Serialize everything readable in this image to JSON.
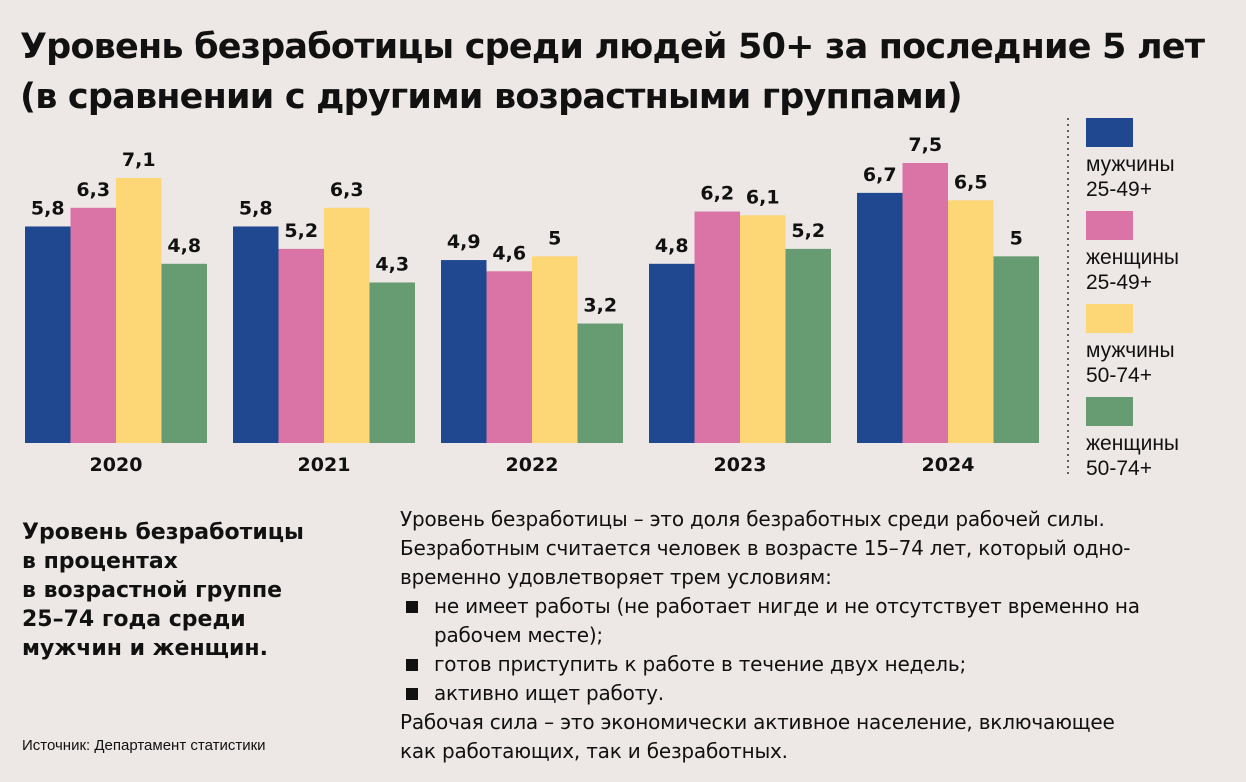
{
  "title_lines": [
    "Уровень безработицы среди людей 50+ за последние 5 лет",
    "(в сравнении с другими возрастными группами)"
  ],
  "chart_data": {
    "type": "bar",
    "title": "Уровень безработицы среди людей 50+ за последние 5 лет (в сравнении с другими возрастными группами)",
    "categories": [
      "2020",
      "2021",
      "2022",
      "2023",
      "2024"
    ],
    "series": [
      {
        "name": "мужчины 25-49+",
        "legend_lines": [
          "мужчины",
          "25-49+"
        ],
        "color": "#1f4891",
        "values": [
          5.8,
          5.8,
          4.9,
          4.8,
          6.7
        ],
        "labels": [
          "5,8",
          "5,8",
          "4,9",
          "4,8",
          "6,7"
        ]
      },
      {
        "name": "женщины 25-49+",
        "legend_lines": [
          "женщины",
          "25-49+"
        ],
        "color": "#db74a6",
        "values": [
          6.3,
          5.2,
          4.6,
          6.2,
          7.5
        ],
        "labels": [
          "6,3",
          "5,2",
          "4,6",
          "6,2",
          "7,5"
        ]
      },
      {
        "name": "мужчины 50-74+",
        "legend_lines": [
          "мужчины",
          "50-74+"
        ],
        "color": "#fdd776",
        "values": [
          7.1,
          6.3,
          5.0,
          6.1,
          6.5
        ],
        "labels": [
          "7,1",
          "6,3",
          "5",
          "6,1",
          "6,5"
        ]
      },
      {
        "name": "женщины 50-74+",
        "legend_lines": [
          "женщины",
          "50-74+"
        ],
        "color": "#679c73",
        "values": [
          4.8,
          4.3,
          3.2,
          5.2,
          5.0
        ],
        "labels": [
          "4,8",
          "4,3",
          "3,2",
          "5,2",
          "5"
        ]
      }
    ],
    "ylim": [
      0,
      7.5
    ],
    "grid": false,
    "legend_position": "right"
  },
  "note_left": "Уровень безработицы\nв процентах\nв возрастной группе\n25–74 года среди\nмужчин и женщин.",
  "source": "Источник: Департамент статистики",
  "description": {
    "para1": [
      "Уровень безработицы – это доля безработных среди рабочей силы.",
      "Безработным считается человек в возрасте 15–74 лет, который одно-",
      "временно удовлетворяет трем условиям:"
    ],
    "conditions": [
      "не имеет работы (не работает нигде и не отсутствует временно на\nрабочем месте);",
      "готов приступить к работе в течение двух недель;",
      "активно ищет работу."
    ],
    "para2": [
      "Рабочая сила – это экономически активное население, включающее",
      "как работающих, так и безработных."
    ]
  }
}
